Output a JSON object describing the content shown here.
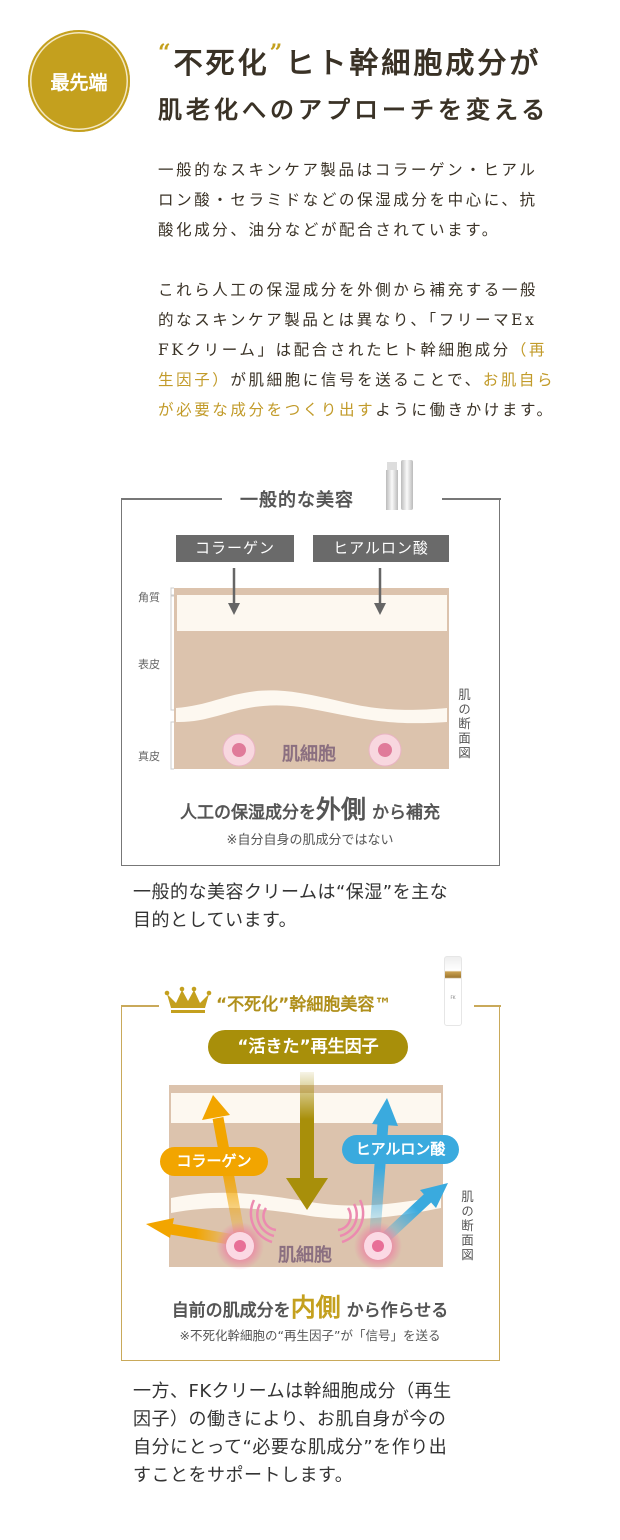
{
  "badge": {
    "label": "最先端"
  },
  "heading": {
    "quote_open": "“",
    "term": "不死化",
    "quote_close": "”",
    "line1_rest": "ヒト幹細胞成分が",
    "line2": "肌老化へのアプローチを変える"
  },
  "intro": {
    "paragraph1": [
      "一般的なスキンケア製品はコラーゲン・ヒアル",
      "ロン酸・セラミドなどの保湿成分を中心に、抗",
      "酸化成分、油分などが配合されています。"
    ],
    "paragraph2": {
      "line1": "これら人工の保湿成分を外側から補充する一般",
      "line2": "的なスキンケア製品とは異なり、「フリーマEx",
      "line3_plain": "FKクリーム」は配合されたヒト幹細胞成分",
      "line3_gold": "（再",
      "line4_gold": "生因子）",
      "line4_plain": "が肌細胞に信号を送ることで、",
      "line4_gold2": "お肌自ら",
      "line5_gold": "が必要な成分をつくり出す",
      "line5_plain": "ように働きかけます。"
    }
  },
  "general_beauty": {
    "title": "一般的な美容",
    "ingredients": [
      "コラーゲン",
      "ヒアルロン酸"
    ],
    "layers": [
      "角質",
      "表皮",
      "真皮"
    ],
    "cell_label": "肌細胞",
    "diagram_label": "肌の断面図",
    "caption_pre": "人工の保湿成分を",
    "caption_emph": "外側",
    "caption_post": "から補充",
    "note": "※自分自身の肌成分ではない",
    "summary": [
      "一般的な美容クリームは“保湿”を主な",
      "目的としています。"
    ]
  },
  "stem_cell_beauty": {
    "title": "“不死化”幹細胞美容™",
    "bottle_label": "FK",
    "factor_pill": "“活きた”再生因子",
    "ingredients": [
      "コラーゲン",
      "ヒアルロン酸"
    ],
    "cell_label": "肌細胞",
    "diagram_label": "肌の断面図",
    "caption_pre": "自前の肌成分を",
    "caption_emph": "内側",
    "caption_post": "から作らせる",
    "note": "※不死化幹細胞の“再生因子”が「信号」を送る",
    "summary": [
      "一方、FKクリームは幹細胞成分（再生",
      "因子）の働きにより、お肌自身が今の",
      "自分にとって“必要な肌成分”を作り出",
      "すことをサポートします。"
    ]
  },
  "colors": {
    "gold": "#c4a01e",
    "olive": "#a88f0a",
    "skin_tan": "#dcc3ad",
    "skin_cream": "#fdf8f0",
    "orange": "#f2a500",
    "blue": "#3aaade",
    "text": "#3a3226"
  }
}
